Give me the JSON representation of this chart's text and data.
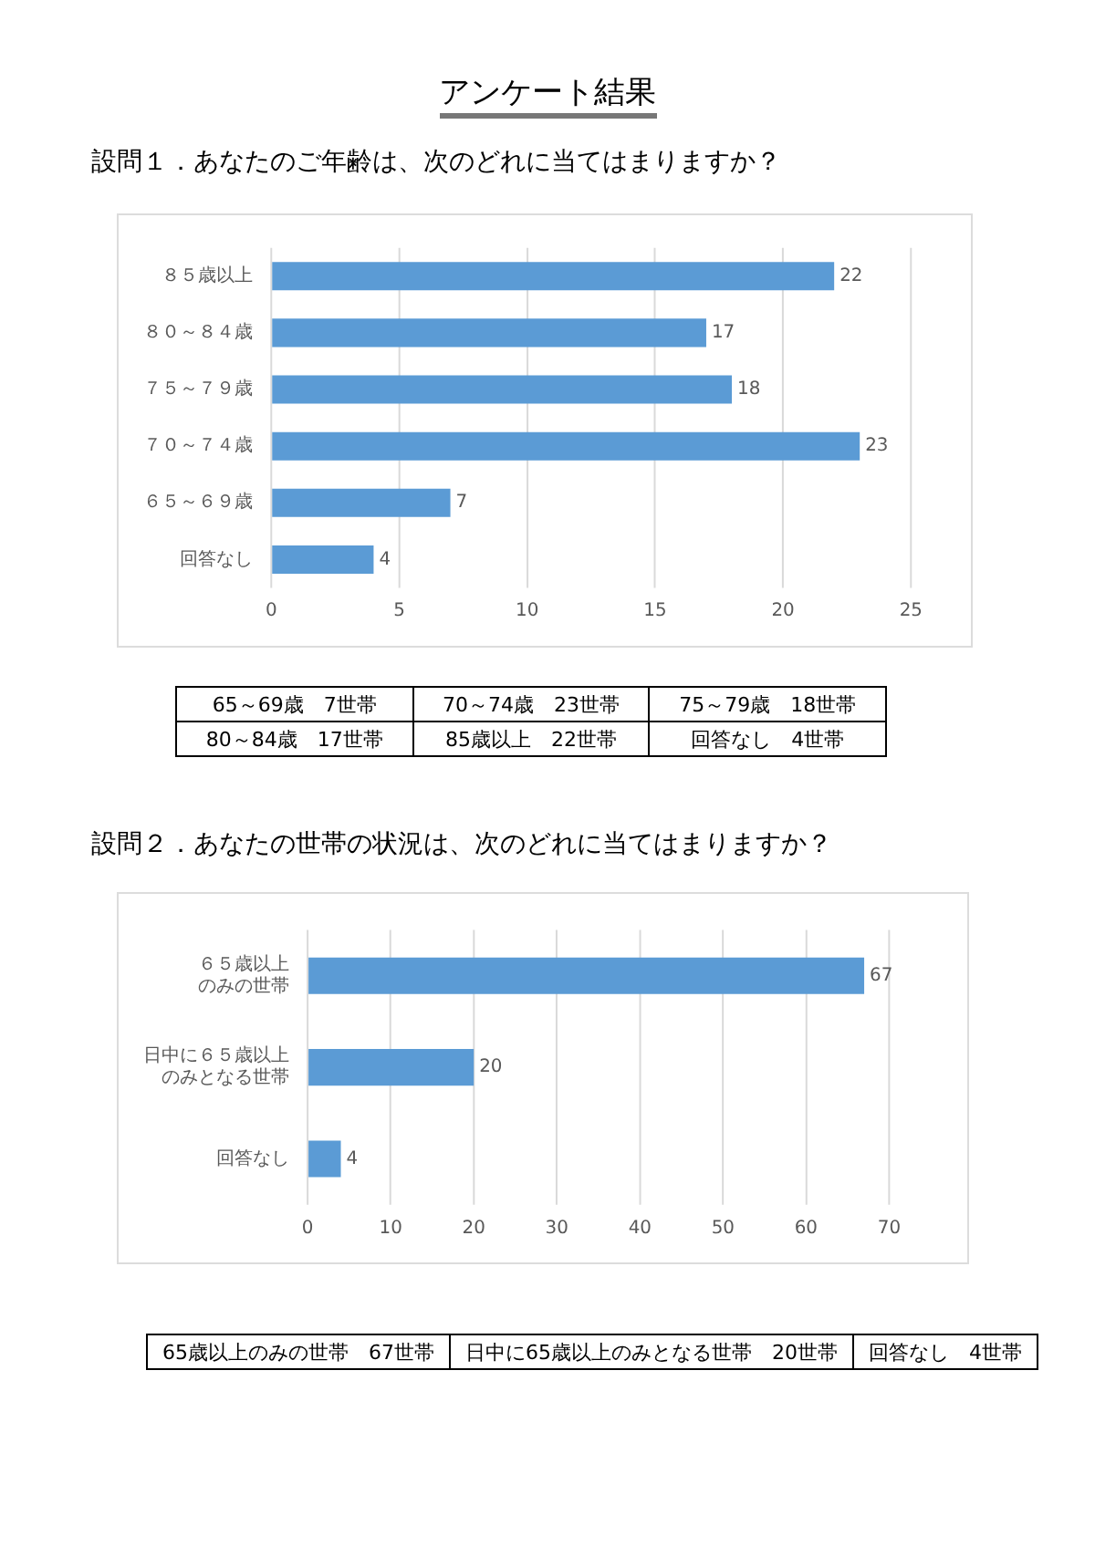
{
  "chart_data": [
    {
      "type": "bar",
      "orientation": "horizontal",
      "title": "アンケート結果",
      "subtitle": "設問１．あなたのご年齢は、次のどれに当てはまりますか？",
      "categories": [
        "８５歳以上",
        "８０～８４歳",
        "７５～７９歳",
        "７０～７４歳",
        "６５～６９歳",
        "回答なし"
      ],
      "values": [
        22,
        17,
        18,
        23,
        7,
        4
      ],
      "color": "#5b9bd5",
      "xlim": [
        0,
        25
      ],
      "xticks": [
        0,
        5,
        10,
        15,
        20,
        25
      ],
      "grid": "x",
      "data_labels": true,
      "annotations": [
        "65～69歳　7世帯",
        "70～74歳　23世帯",
        "75～79歳　18世帯",
        "80～84歳　17世帯",
        "85歳以上　22世帯",
        "回答なし　4世帯"
      ]
    },
    {
      "type": "bar",
      "orientation": "horizontal",
      "title": "設問２．あなたの世帯の状況は、次のどれに当てはまりますか？",
      "categories": [
        "６５歳以上のみの世帯",
        "日中に６５歳以上のみとなる世帯",
        "回答なし"
      ],
      "values": [
        67,
        20,
        4
      ],
      "color": "#5b9bd5",
      "xlim": [
        0,
        70
      ],
      "xticks": [
        0,
        10,
        20,
        30,
        40,
        50,
        60,
        70
      ],
      "grid": "x",
      "data_labels": true,
      "annotations": [
        "65歳以上のみの世帯　67世帯",
        "日中に65歳以上のみとなる世帯　20世帯",
        "回答なし　4世帯"
      ]
    }
  ]
}
